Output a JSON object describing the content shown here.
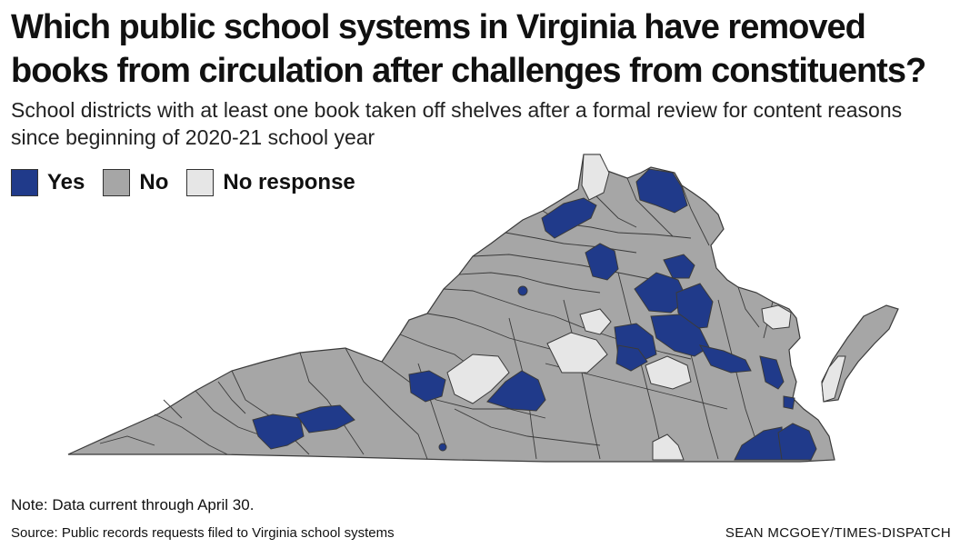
{
  "title": "Which public school systems in Virginia have removed books from circulation after challenges from constituents?",
  "subtitle": "School districts with at least one book taken off shelves after a formal review for content reasons since beginning of 2020-21 school year",
  "legend": [
    {
      "label": "Yes",
      "color": "#203a8a"
    },
    {
      "label": "No",
      "color": "#a6a6a6"
    },
    {
      "label": "No response",
      "color": "#e6e6e6"
    }
  ],
  "colors": {
    "yes": "#203a8a",
    "no": "#a6a6a6",
    "no_response": "#e6e6e6",
    "border": "#3a3a3a"
  },
  "map": {
    "region": "Virginia school districts",
    "categories": [
      "Yes",
      "No",
      "No response"
    ]
  },
  "note": "Note: Data current through April 30.",
  "source": "Source: Public records requests filed to Virginia school systems",
  "credit": "SEAN MCGOEY/TIMES-DISPATCH"
}
